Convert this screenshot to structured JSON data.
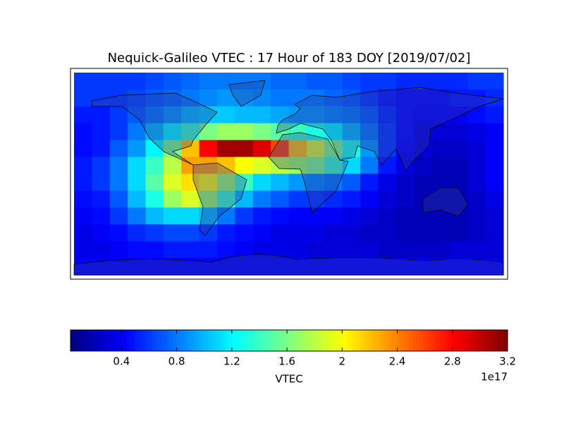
{
  "chart_data": {
    "type": "heatmap",
    "title": "Nequick-Galileo VTEC : 17 Hour of 183 DOY [2019/07/02]",
    "x": [
      -172.5,
      -157.5,
      -142.5,
      -127.5,
      -112.5,
      -97.5,
      -82.5,
      -67.5,
      -52.5,
      -37.5,
      -22.5,
      -7.5,
      7.5,
      22.5,
      37.5,
      52.5,
      67.5,
      82.5,
      97.5,
      112.5,
      127.5,
      142.5,
      157.5,
      172.5
    ],
    "y": [
      82.5,
      67.5,
      52.5,
      37.5,
      22.5,
      7.5,
      -7.5,
      -22.5,
      -37.5,
      -52.5,
      -67.5,
      -82.5
    ],
    "xlim": [
      -180,
      180
    ],
    "ylim": [
      -90,
      90
    ],
    "values": [
      [
        0.6,
        0.6,
        0.6,
        0.6,
        0.65,
        0.7,
        0.75,
        0.8,
        0.8,
        0.8,
        0.8,
        0.75,
        0.75,
        0.7,
        0.7,
        0.65,
        0.6,
        0.6,
        0.55,
        0.55,
        0.55,
        0.55,
        0.6,
        0.6
      ],
      [
        0.6,
        0.6,
        0.6,
        0.65,
        0.7,
        0.75,
        0.8,
        0.85,
        0.9,
        0.9,
        0.85,
        0.8,
        0.8,
        0.8,
        0.75,
        0.7,
        0.6,
        0.5,
        0.45,
        0.45,
        0.45,
        0.5,
        0.5,
        0.55
      ],
      [
        0.5,
        0.5,
        0.6,
        0.7,
        0.8,
        0.9,
        1.0,
        1.05,
        1.05,
        1.0,
        1.0,
        0.95,
        0.9,
        0.9,
        0.85,
        0.8,
        0.7,
        0.55,
        0.45,
        0.4,
        0.4,
        0.4,
        0.45,
        0.5
      ],
      [
        0.45,
        0.5,
        0.6,
        0.8,
        1.0,
        1.2,
        1.4,
        1.6,
        1.7,
        1.7,
        1.6,
        1.5,
        1.4,
        1.3,
        1.2,
        1.0,
        0.8,
        0.6,
        0.45,
        0.35,
        0.3,
        0.3,
        0.35,
        0.4
      ],
      [
        0.45,
        0.5,
        0.7,
        0.9,
        1.2,
        1.6,
        2.2,
        2.8,
        3.1,
        3.1,
        2.9,
        2.6,
        2.2,
        1.9,
        1.6,
        1.3,
        0.9,
        0.6,
        0.4,
        0.3,
        0.25,
        0.25,
        0.3,
        0.4
      ],
      [
        0.5,
        0.6,
        0.8,
        1.1,
        1.4,
        1.8,
        2.3,
        2.3,
        2.2,
        2.0,
        1.9,
        1.8,
        1.7,
        1.6,
        1.4,
        1.1,
        0.8,
        0.5,
        0.35,
        0.25,
        0.2,
        0.2,
        0.3,
        0.4
      ],
      [
        0.5,
        0.6,
        0.8,
        1.1,
        1.5,
        1.9,
        2.1,
        2.0,
        1.7,
        1.4,
        1.1,
        1.0,
        0.9,
        0.85,
        0.8,
        0.7,
        0.5,
        0.35,
        0.25,
        0.2,
        0.2,
        0.2,
        0.3,
        0.4
      ],
      [
        0.45,
        0.5,
        0.7,
        1.0,
        1.3,
        1.7,
        1.9,
        1.7,
        1.4,
        1.0,
        0.8,
        0.7,
        0.6,
        0.6,
        0.55,
        0.5,
        0.4,
        0.3,
        0.25,
        0.2,
        0.2,
        0.2,
        0.25,
        0.35
      ],
      [
        0.4,
        0.45,
        0.6,
        0.8,
        1.0,
        1.1,
        1.1,
        1.0,
        0.8,
        0.6,
        0.5,
        0.45,
        0.4,
        0.4,
        0.4,
        0.35,
        0.3,
        0.25,
        0.2,
        0.2,
        0.2,
        0.2,
        0.25,
        0.3
      ],
      [
        0.35,
        0.4,
        0.45,
        0.55,
        0.6,
        0.65,
        0.65,
        0.6,
        0.5,
        0.45,
        0.4,
        0.35,
        0.35,
        0.35,
        0.3,
        0.3,
        0.25,
        0.25,
        0.2,
        0.2,
        0.2,
        0.2,
        0.25,
        0.3
      ],
      [
        0.35,
        0.35,
        0.4,
        0.45,
        0.45,
        0.5,
        0.5,
        0.5,
        0.45,
        0.4,
        0.35,
        0.35,
        0.35,
        0.3,
        0.3,
        0.3,
        0.3,
        0.25,
        0.25,
        0.25,
        0.25,
        0.3,
        0.3,
        0.3
      ],
      [
        0.4,
        0.4,
        0.4,
        0.4,
        0.4,
        0.4,
        0.4,
        0.4,
        0.4,
        0.4,
        0.4,
        0.4,
        0.4,
        0.4,
        0.4,
        0.4,
        0.4,
        0.4,
        0.4,
        0.4,
        0.4,
        0.4,
        0.4,
        0.4
      ]
    ],
    "colormap": "jet",
    "clim": [
      0.03,
      3.2
    ],
    "colorbar_ticks": [
      0.4,
      0.8,
      1.2,
      1.6,
      2.0,
      2.4,
      2.8,
      3.2
    ],
    "colorbar_label": "VTEC",
    "colorbar_offset_label": "1e17"
  }
}
